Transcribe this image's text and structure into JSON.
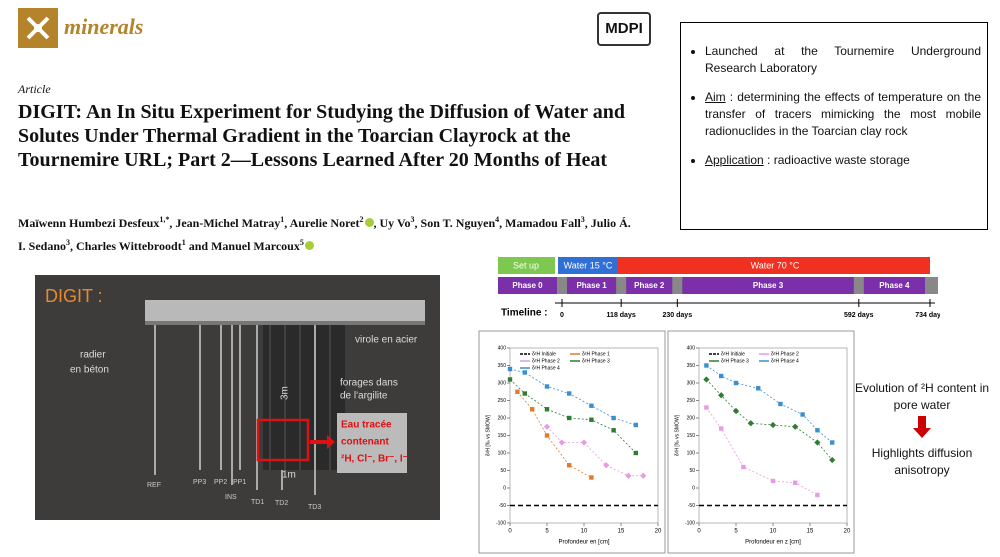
{
  "header": {
    "journal": "minerals",
    "publisher": "MDPI"
  },
  "article": {
    "type": "Article",
    "title": "DIGIT: An In Situ Experiment for Studying the Diffusion of Water and Solutes Under Thermal Gradient in the Toarcian Clayrock at the Tournemire URL; Part 2—Lessons Learned After 20 Months of Heat",
    "authors": [
      {
        "name": "Maïwenn Humbezi Desfeux",
        "aff": "1,*"
      },
      {
        "name": "Jean-Michel Matray",
        "aff": "1"
      },
      {
        "name": "Aurelie Noret",
        "aff": "2"
      },
      {
        "name": "Uy Vo",
        "aff": "3"
      },
      {
        "name": "Son T. Nguyen",
        "aff": "4"
      },
      {
        "name": "Mamadou Fall",
        "aff": "3"
      },
      {
        "name": "Julio Á. I. Sedano",
        "aff": "3"
      },
      {
        "name": "Charles Wittebroodt",
        "aff": "1"
      },
      {
        "name": "Manuel Marcoux",
        "aff": "5"
      }
    ]
  },
  "summary": {
    "bullets": [
      {
        "text": "Launched at the Tournemire Underground Research Laboratory"
      },
      {
        "label": "Aim",
        "text": " : determining the effects of temperature on the transfer of tracers mimicking the most mobile radionuclides in the Toarcian clay rock"
      },
      {
        "label": "Application",
        "text": " : radioactive waste storage"
      }
    ]
  },
  "diagram": {
    "title": "DIGIT :",
    "labels": [
      "radier",
      "en béton",
      "virole en acier",
      "forages dans",
      "de l'argilite",
      "3m",
      "1m"
    ],
    "tracer": [
      "Eau tracée",
      "contenant",
      "²H, Cl⁻, Br⁻, I⁻"
    ],
    "boreholes": [
      "REF",
      "PP3",
      "PP2",
      "PP1",
      "INS",
      "TD1",
      "TD2",
      "TD3"
    ]
  },
  "timeline": {
    "label": "Timeline :",
    "stages": [
      "Set up",
      "Water  15 °C",
      "Water 70 °C"
    ],
    "phases": [
      "Phase 0",
      "Phase 1",
      "Phase 2",
      "Phase 3",
      "Phase 4"
    ],
    "ticks": [
      0,
      {
        "value": 118,
        "label": "118 days"
      },
      {
        "value": 230,
        "label": "230 days"
      },
      {
        "value": 592,
        "label": "592 days"
      },
      {
        "value": 734,
        "label": "734 days"
      }
    ]
  },
  "chart_data": [
    {
      "type": "line",
      "ylabel": "δ²H [‰ vs SMOW]",
      "xlabel": "Profondeur en [cm]",
      "xlim": [
        0,
        20
      ],
      "ylim": [
        -100,
        400
      ],
      "xticks": [
        0,
        5,
        10,
        15,
        20
      ],
      "yticks": [
        -100,
        -50,
        0,
        50,
        100,
        150,
        200,
        250,
        300,
        350,
        400
      ],
      "series": [
        {
          "name": "δ²H Initiale",
          "color": "#000000",
          "x": [
            0,
            20
          ],
          "values": [
            -50,
            -50
          ]
        },
        {
          "name": "δ²H Phase 1",
          "color": "#e07b2a",
          "x": [
            1,
            3,
            5,
            8,
            11
          ],
          "values": [
            275,
            225,
            150,
            65,
            30
          ]
        },
        {
          "name": "δ²H Phase 2",
          "color": "#e79be3",
          "x": [
            5,
            7,
            10,
            13,
            16,
            18
          ],
          "values": [
            175,
            130,
            130,
            65,
            35,
            35
          ]
        },
        {
          "name": "δ²H Phase 3",
          "color": "#2e7d32",
          "x": [
            0,
            2,
            5,
            8,
            11,
            14,
            17
          ],
          "values": [
            310,
            270,
            225,
            200,
            195,
            165,
            100
          ]
        },
        {
          "name": "δ²H Phase 4",
          "color": "#3b8fd0",
          "x": [
            0,
            2,
            5,
            8,
            11,
            14,
            17
          ],
          "values": [
            340,
            330,
            290,
            270,
            235,
            200,
            180
          ]
        }
      ]
    },
    {
      "type": "line",
      "ylabel": "δ²H [‰ vs SMOW]",
      "xlabel": "Profondeur en z [cm]",
      "xlim": [
        0,
        20
      ],
      "ylim": [
        -100,
        400
      ],
      "xticks": [
        0,
        5,
        10,
        15,
        20
      ],
      "yticks": [
        -100,
        -50,
        0,
        50,
        100,
        150,
        200,
        250,
        300,
        350,
        400
      ],
      "series": [
        {
          "name": "δ²H Initiale",
          "color": "#000000",
          "x": [
            0,
            20
          ],
          "values": [
            -50,
            -50
          ]
        },
        {
          "name": "δ²H Phase 2",
          "color": "#e79be3",
          "x": [
            1,
            3,
            6,
            10,
            13,
            16
          ],
          "values": [
            230,
            170,
            60,
            20,
            15,
            -20
          ]
        },
        {
          "name": "δ²H Phase 3",
          "color": "#2e7d32",
          "x": [
            1,
            3,
            5,
            7,
            10,
            13,
            16,
            18
          ],
          "values": [
            310,
            265,
            220,
            185,
            180,
            175,
            130,
            80
          ]
        },
        {
          "name": "δ²H Phase 4",
          "color": "#3b8fd0",
          "x": [
            1,
            3,
            5,
            8,
            11,
            14,
            16,
            18
          ],
          "values": [
            350,
            320,
            300,
            285,
            240,
            210,
            165,
            130
          ]
        }
      ]
    }
  ],
  "conclusion": {
    "top": "Evolution of ²H content in pore water",
    "bottom": "Highlights diffusion anisotropy"
  }
}
